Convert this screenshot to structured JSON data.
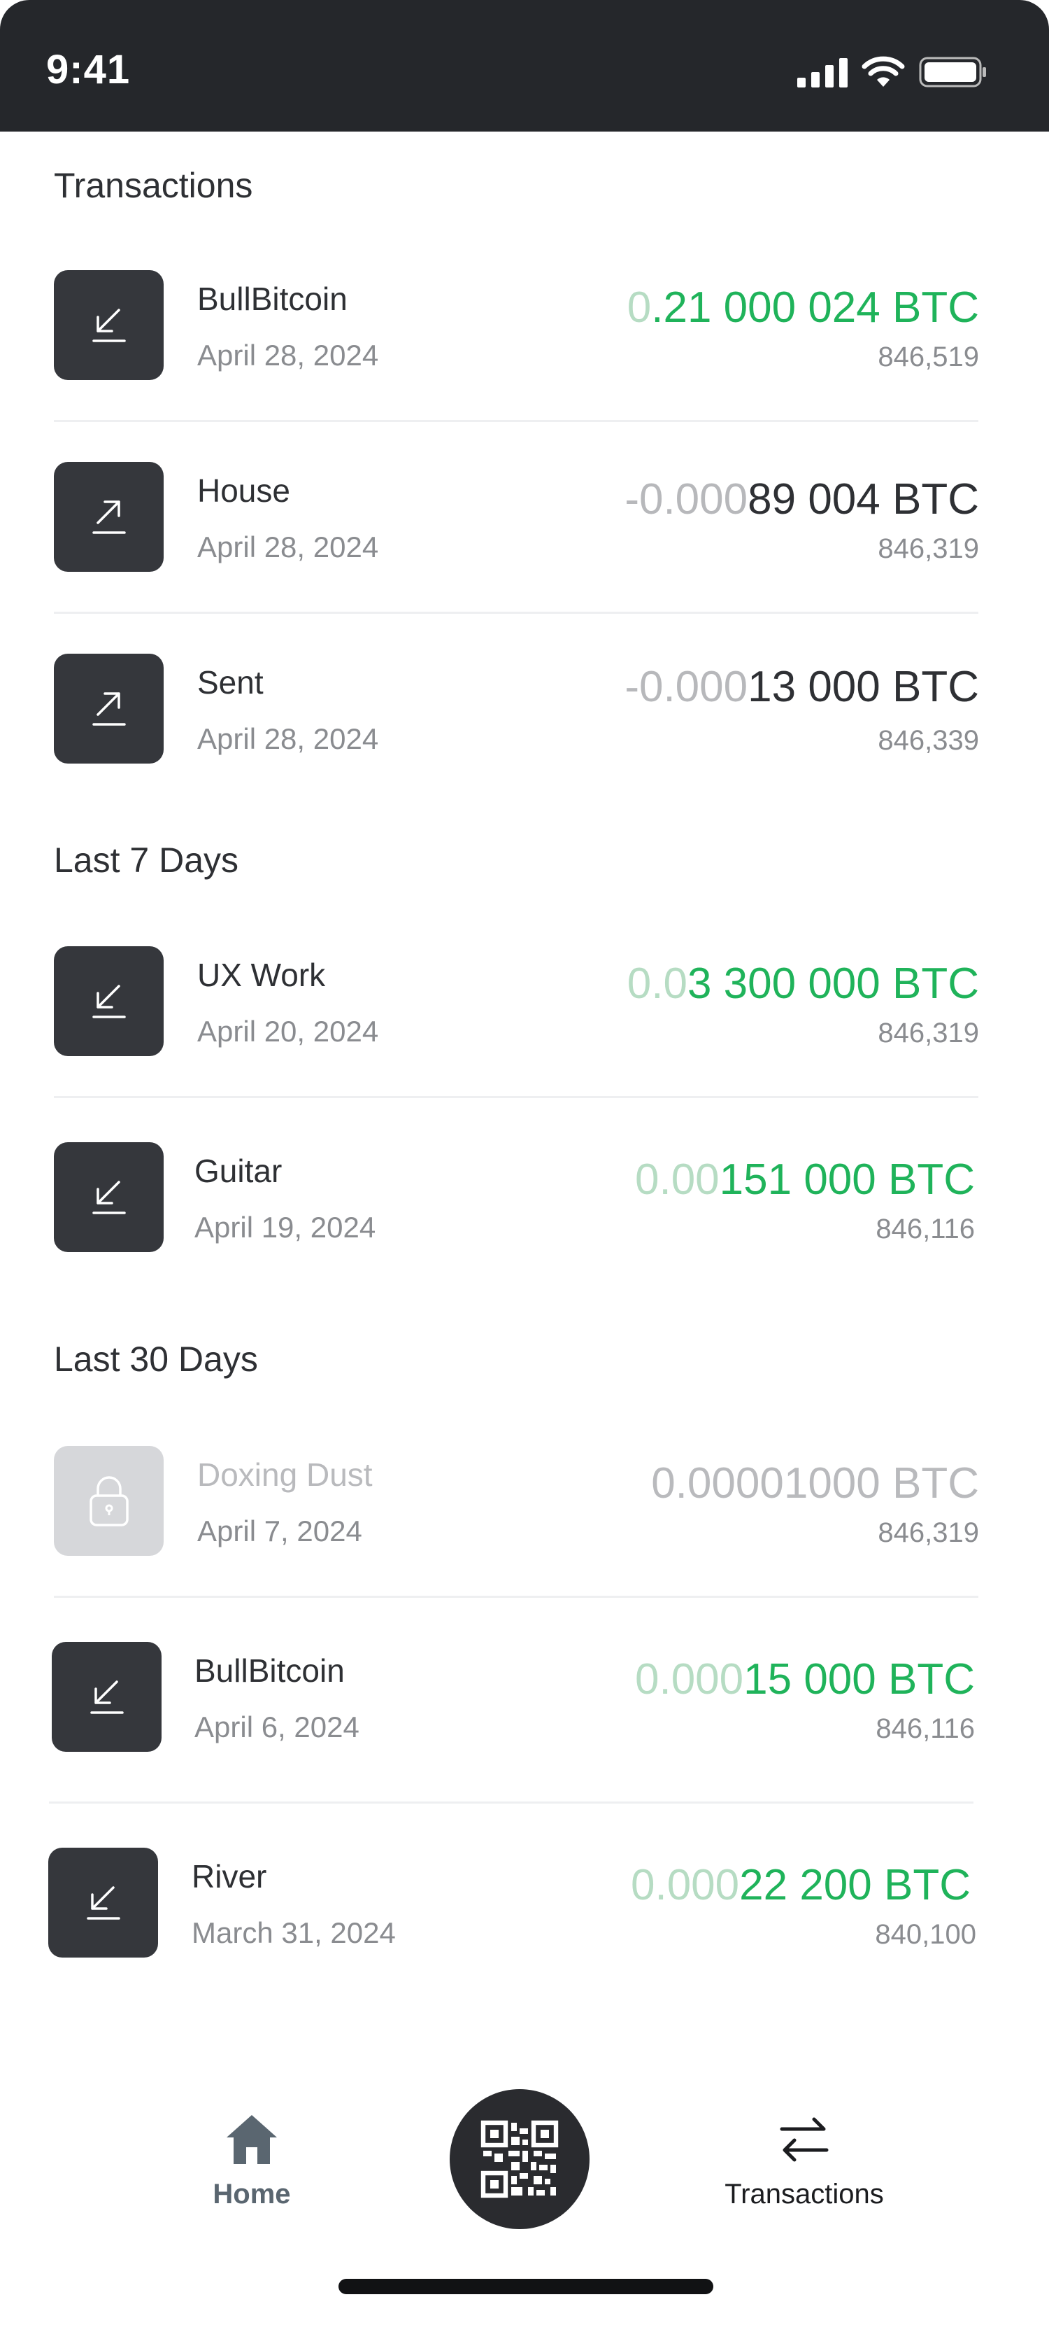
{
  "status_bar": {
    "time": "9:41"
  },
  "sections": {
    "transactions": {
      "title": "Transactions"
    },
    "last7": {
      "title": "Last 7 Days"
    },
    "last30": {
      "title": "Last 30 Days"
    }
  },
  "transactions": [
    {
      "name": "BullBitcoin",
      "date": "April 28, 2024",
      "amount_faded": "0",
      "amount_main": ".21 000 024 BTC",
      "block": "846,519",
      "direction": "incoming",
      "icon": "arrow-down-left-icon"
    },
    {
      "name": "House",
      "date": "April 28, 2024",
      "amount_faded": "-0.000",
      "amount_main": "89 004 BTC",
      "block": "846,319",
      "direction": "outgoing",
      "icon": "arrow-up-right-icon"
    },
    {
      "name": "Sent",
      "date": "April 28, 2024",
      "amount_faded": "-0.000",
      "amount_main": "13 000 BTC",
      "block": "846,339",
      "direction": "outgoing",
      "icon": "arrow-up-right-icon"
    },
    {
      "name": "UX Work",
      "date": "April 20, 2024",
      "amount_faded": "0.0",
      "amount_main": "3 300 000 BTC",
      "block": "846,319",
      "direction": "incoming",
      "icon": "arrow-down-left-icon"
    },
    {
      "name": "Guitar",
      "date": "April 19, 2024",
      "amount_faded": "0.00",
      "amount_main": "151 000 BTC",
      "block": "846,116",
      "direction": "incoming",
      "icon": "arrow-down-left-icon"
    },
    {
      "name": "Doxing Dust",
      "date": "April 7, 2024",
      "amount_faded": "",
      "amount_main": "0.00001000 BTC",
      "block": "846,319",
      "direction": "locked",
      "icon": "lock-icon"
    },
    {
      "name": "BullBitcoin",
      "date": "April 6, 2024",
      "amount_faded": "0.000",
      "amount_main": "15 000 BTC",
      "block": "846,116",
      "direction": "incoming",
      "icon": "arrow-down-left-icon"
    },
    {
      "name": "River",
      "date": "March 31, 2024",
      "amount_faded": "0.000",
      "amount_main": "22 200 BTC",
      "block": "840,100",
      "direction": "incoming",
      "icon": "arrow-down-left-icon"
    }
  ],
  "nav": {
    "home_label": "Home",
    "transactions_label": "Transactions",
    "scan_icon": "qr-code-icon",
    "colors": {
      "home": "#5a6670",
      "active": "#1b1c1f",
      "incoming": "#1fb35a"
    }
  }
}
